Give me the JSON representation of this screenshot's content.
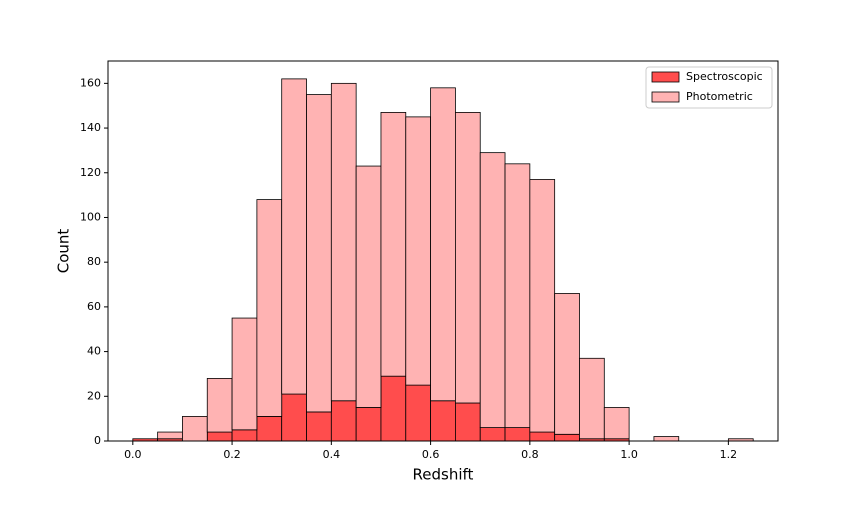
{
  "chart_data": {
    "type": "histogram",
    "stacked": true,
    "xlabel": "Redshift",
    "ylabel": "Count",
    "bins": [
      0,
      0.05,
      0.1,
      0.15,
      0.2,
      0.25,
      0.3,
      0.35,
      0.4,
      0.45,
      0.5,
      0.55,
      0.6,
      0.65,
      0.7,
      0.75,
      0.8,
      0.85,
      0.9,
      0.95,
      1.0,
      1.05,
      1.1,
      1.15,
      1.2,
      1.25
    ],
    "series": [
      {
        "name": "Spectroscopic",
        "color": "#ff4d4d",
        "values": [
          1,
          1,
          0,
          4,
          5,
          11,
          21,
          13,
          18,
          15,
          29,
          25,
          18,
          17,
          6,
          6,
          4,
          3,
          1,
          1,
          0,
          0,
          0,
          0,
          0
        ]
      },
      {
        "name": "Photometric",
        "color": "#ffb3b3",
        "values": [
          0,
          3,
          11,
          24,
          50,
          97,
          141,
          142,
          142,
          108,
          118,
          120,
          140,
          130,
          123,
          118,
          113,
          63,
          36,
          14,
          0,
          2,
          0,
          0,
          1
        ]
      }
    ],
    "xlim": [
      -0.05,
      1.3
    ],
    "ylim": [
      0,
      170
    ],
    "xticks": [
      {
        "value": 0,
        "label": "0.0"
      },
      0.2,
      0.4,
      0.6,
      0.8,
      {
        "value": 1,
        "label": "1.0"
      },
      1.2
    ],
    "yticks": [
      0,
      20,
      40,
      60,
      80,
      100,
      120,
      140,
      160
    ],
    "legend": "upper right"
  }
}
